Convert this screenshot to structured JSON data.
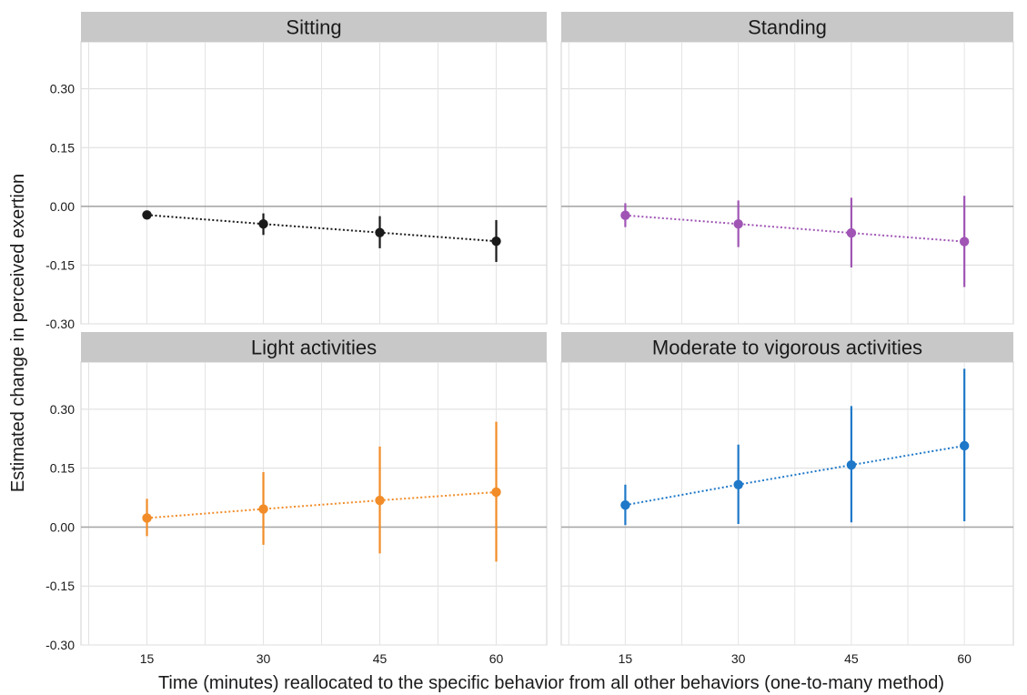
{
  "chart_data": {
    "type": "scatter",
    "layout": "facet-grid-2x2",
    "xlabel": "Time (minutes) reallocated to the specific behavior from all other behaviors (one-to-many method)",
    "ylabel": "Estimated change in perceived exertion",
    "x_ticks": [
      15,
      30,
      45,
      60
    ],
    "y_ticks": [
      -0.3,
      -0.15,
      0.0,
      0.15,
      0.3
    ],
    "y_tick_labels": [
      "-0.30",
      "-0.15",
      "0.00",
      "0.15",
      "0.30"
    ],
    "xlim": [
      6.5,
      66.5
    ],
    "ylim": [
      -0.3,
      0.42
    ],
    "reference_line_y": 0,
    "grid": true,
    "connector": "dotted",
    "error_bars": true,
    "panels": [
      {
        "title": "Sitting",
        "color": "#1a1a1a",
        "x": [
          15,
          30,
          45,
          60
        ],
        "y": [
          -0.022,
          -0.045,
          -0.067,
          -0.089
        ],
        "lower": [
          -0.032,
          -0.073,
          -0.107,
          -0.142
        ],
        "upper": [
          -0.012,
          -0.018,
          -0.025,
          -0.035
        ]
      },
      {
        "title": "Standing",
        "color": "#a055b5",
        "x": [
          15,
          30,
          45,
          60
        ],
        "y": [
          -0.023,
          -0.045,
          -0.068,
          -0.09
        ],
        "lower": [
          -0.053,
          -0.104,
          -0.156,
          -0.206
        ],
        "upper": [
          0.008,
          0.015,
          0.022,
          0.027
        ]
      },
      {
        "title": "Light activities",
        "color": "#f28c28",
        "x": [
          15,
          30,
          45,
          60
        ],
        "y": [
          0.023,
          0.046,
          0.068,
          0.089
        ],
        "lower": [
          -0.023,
          -0.045,
          -0.067,
          -0.088
        ],
        "upper": [
          0.072,
          0.14,
          0.205,
          0.268
        ]
      },
      {
        "title": "Moderate to vigorous activities",
        "color": "#1f78c8",
        "x": [
          15,
          30,
          45,
          60
        ],
        "y": [
          0.056,
          0.108,
          0.158,
          0.207
        ],
        "lower": [
          0.005,
          0.008,
          0.012,
          0.015
        ],
        "upper": [
          0.108,
          0.21,
          0.308,
          0.403
        ]
      }
    ]
  }
}
